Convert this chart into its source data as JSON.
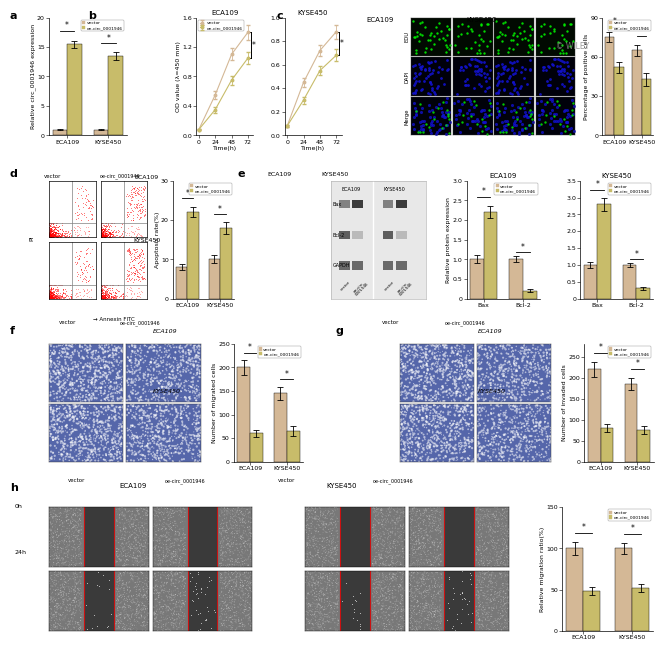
{
  "panel_a": {
    "ylabel": "Relative circ_0001946 expression",
    "categories": [
      "ECA109",
      "KYSE450"
    ],
    "vector_vals": [
      1.0,
      1.0
    ],
    "oe_vals": [
      15.5,
      13.5
    ],
    "vector_err": [
      0.15,
      0.12
    ],
    "oe_err": [
      0.6,
      0.7
    ],
    "color_vector": "#D4B896",
    "color_oe": "#C8BC6A",
    "ylim": [
      0,
      20
    ],
    "yticks": [
      0,
      5,
      10,
      15,
      20
    ]
  },
  "panel_b_eca": {
    "title": "ECA109",
    "xlabel": "Time(h)",
    "ylabel": "OD value (λ=450 mm)",
    "timepoints": [
      0,
      24,
      48,
      72
    ],
    "vector_vals": [
      0.08,
      0.55,
      1.1,
      1.4
    ],
    "oe_vals": [
      0.08,
      0.35,
      0.75,
      1.05
    ],
    "vector_err": [
      0.01,
      0.05,
      0.08,
      0.1
    ],
    "oe_err": [
      0.01,
      0.04,
      0.06,
      0.08
    ],
    "color_vector": "#D4B896",
    "color_oe": "#C8BC6A",
    "ylim": [
      0,
      1.6
    ],
    "yticks": [
      0.0,
      0.4,
      0.8,
      1.2,
      1.6
    ]
  },
  "panel_b_kyse": {
    "title": "KYSE450",
    "xlabel": "Time(h)",
    "ylabel": "OD value (λ=450 mm)",
    "timepoints": [
      0,
      24,
      48,
      72
    ],
    "vector_vals": [
      0.08,
      0.45,
      0.72,
      0.88
    ],
    "oe_vals": [
      0.08,
      0.3,
      0.55,
      0.68
    ],
    "vector_err": [
      0.01,
      0.04,
      0.05,
      0.06
    ],
    "oe_err": [
      0.01,
      0.03,
      0.04,
      0.05
    ],
    "color_vector": "#D4B896",
    "color_oe": "#C8BC6A",
    "ylim": [
      0,
      1.0
    ],
    "yticks": [
      0.0,
      0.2,
      0.4,
      0.6,
      0.8,
      1.0
    ]
  },
  "panel_c_bar": {
    "ylabel": "Percentage of positive cells",
    "categories": [
      "ECA109",
      "KYSE450"
    ],
    "vector_vals": [
      75,
      65
    ],
    "oe_vals": [
      52,
      43
    ],
    "vector_err": [
      4,
      4
    ],
    "oe_err": [
      4,
      5
    ],
    "color_vector": "#D4B896",
    "color_oe": "#C8BC6A",
    "ylim": [
      0,
      90
    ],
    "yticks": [
      0,
      30,
      60,
      90
    ]
  },
  "panel_d_bar": {
    "ylabel": "Apoptosis rate(%)",
    "categories": [
      "ECA109",
      "KYSE450"
    ],
    "vector_vals": [
      8,
      10
    ],
    "oe_vals": [
      22,
      18
    ],
    "vector_err": [
      0.8,
      1.0
    ],
    "oe_err": [
      1.2,
      1.5
    ],
    "color_vector": "#D4B896",
    "color_oe": "#C8BC6A",
    "ylim": [
      0,
      30
    ],
    "yticks": [
      0,
      10,
      20,
      30
    ]
  },
  "panel_e_eca": {
    "title": "ECA109",
    "ylabel": "Relative protein expression",
    "categories": [
      "Bax",
      "Bcl-2"
    ],
    "vector_vals": [
      1.0,
      1.0
    ],
    "oe_vals": [
      2.2,
      0.2
    ],
    "vector_err": [
      0.1,
      0.08
    ],
    "oe_err": [
      0.15,
      0.04
    ],
    "color_vector": "#D4B896",
    "color_oe": "#C8BC6A",
    "ylim": [
      0,
      3.0
    ],
    "yticks": [
      0,
      0.5,
      1.0,
      1.5,
      2.0,
      2.5,
      3.0
    ]
  },
  "panel_e_kyse": {
    "title": "KYSE450",
    "ylabel": "Relative protein expression",
    "categories": [
      "Bax",
      "Bcl-2"
    ],
    "vector_vals": [
      1.0,
      1.0
    ],
    "oe_vals": [
      2.8,
      0.3
    ],
    "vector_err": [
      0.08,
      0.07
    ],
    "oe_err": [
      0.2,
      0.05
    ],
    "color_vector": "#D4B896",
    "color_oe": "#C8BC6A",
    "ylim": [
      0,
      3.5
    ],
    "yticks": [
      0,
      0.5,
      1.0,
      1.5,
      2.0,
      2.5,
      3.0,
      3.5
    ]
  },
  "panel_f_bar": {
    "ylabel": "Number of migrated cells",
    "categories": [
      "ECA109",
      "KYSE450"
    ],
    "vector_vals": [
      200,
      145
    ],
    "oe_vals": [
      60,
      65
    ],
    "vector_err": [
      15,
      14
    ],
    "oe_err": [
      8,
      10
    ],
    "color_vector": "#D4B896",
    "color_oe": "#C8BC6A",
    "ylim": [
      0,
      250
    ],
    "yticks": [
      0,
      50,
      100,
      150,
      200,
      250
    ]
  },
  "panel_g_bar": {
    "ylabel": "Number of invaded cells",
    "categories": [
      "ECA109",
      "KYSE450"
    ],
    "vector_vals": [
      220,
      185
    ],
    "oe_vals": [
      80,
      75
    ],
    "vector_err": [
      18,
      15
    ],
    "oe_err": [
      10,
      10
    ],
    "color_vector": "#D4B896",
    "color_oe": "#C8BC6A",
    "ylim": [
      0,
      280
    ],
    "yticks": [
      0,
      50,
      100,
      150,
      200,
      250
    ]
  },
  "panel_h_bar": {
    "ylabel": "Relative migration ratio(%)",
    "categories": [
      "ECA109",
      "KYSE450"
    ],
    "vector_vals": [
      100,
      100
    ],
    "oe_vals": [
      48,
      52
    ],
    "vector_err": [
      8,
      7
    ],
    "oe_err": [
      5,
      5
    ],
    "color_vector": "#D4B896",
    "color_oe": "#C8BC6A",
    "ylim": [
      0,
      150
    ],
    "yticks": [
      0,
      50,
      100,
      150
    ]
  },
  "legend_vector": "vector",
  "legend_oe": "oe-circ_0001946",
  "bar_width": 0.35
}
